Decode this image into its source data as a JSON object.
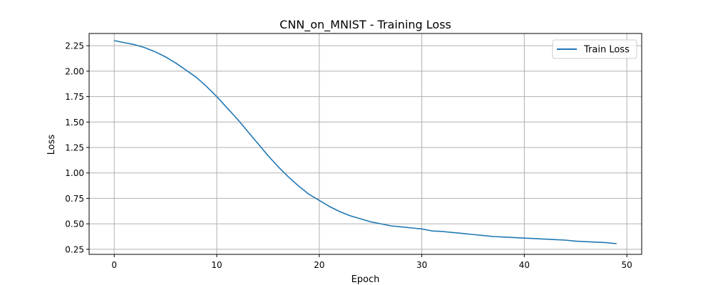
{
  "chart_data": {
    "type": "line",
    "title": "CNN_on_MNIST - Training Loss",
    "xlabel": "Epoch",
    "ylabel": "Loss",
    "xlim": [
      -2.45,
      51.45
    ],
    "ylim": [
      0.2,
      2.37
    ],
    "x_ticks": [
      0,
      10,
      20,
      30,
      40,
      50
    ],
    "y_ticks": [
      0.25,
      0.5,
      0.75,
      1.0,
      1.25,
      1.5,
      1.75,
      2.0,
      2.25
    ],
    "y_tick_labels": [
      "0.25",
      "0.50",
      "0.75",
      "1.00",
      "1.25",
      "1.50",
      "1.75",
      "2.00",
      "2.25"
    ],
    "x_tick_labels": [
      "0",
      "10",
      "20",
      "30",
      "40",
      "50"
    ],
    "grid": true,
    "legend_position": "top-right",
    "series": [
      {
        "name": "Train Loss",
        "color": "#1f77b4",
        "x": [
          0,
          1,
          2,
          3,
          4,
          5,
          6,
          7,
          8,
          9,
          10,
          11,
          12,
          13,
          14,
          15,
          16,
          17,
          18,
          19,
          20,
          21,
          22,
          23,
          24,
          25,
          26,
          27,
          28,
          29,
          30,
          31,
          32,
          33,
          34,
          35,
          36,
          37,
          38,
          39,
          40,
          41,
          42,
          43,
          44,
          45,
          46,
          47,
          48,
          49
        ],
        "y": [
          2.3,
          2.28,
          2.26,
          2.23,
          2.19,
          2.14,
          2.08,
          2.01,
          1.94,
          1.85,
          1.75,
          1.64,
          1.53,
          1.41,
          1.29,
          1.17,
          1.06,
          0.96,
          0.87,
          0.79,
          0.73,
          0.67,
          0.62,
          0.58,
          0.55,
          0.52,
          0.5,
          0.48,
          0.47,
          0.46,
          0.45,
          0.43,
          0.425,
          0.415,
          0.405,
          0.395,
          0.385,
          0.375,
          0.37,
          0.365,
          0.36,
          0.355,
          0.35,
          0.345,
          0.34,
          0.33,
          0.325,
          0.32,
          0.315,
          0.305
        ]
      }
    ]
  }
}
